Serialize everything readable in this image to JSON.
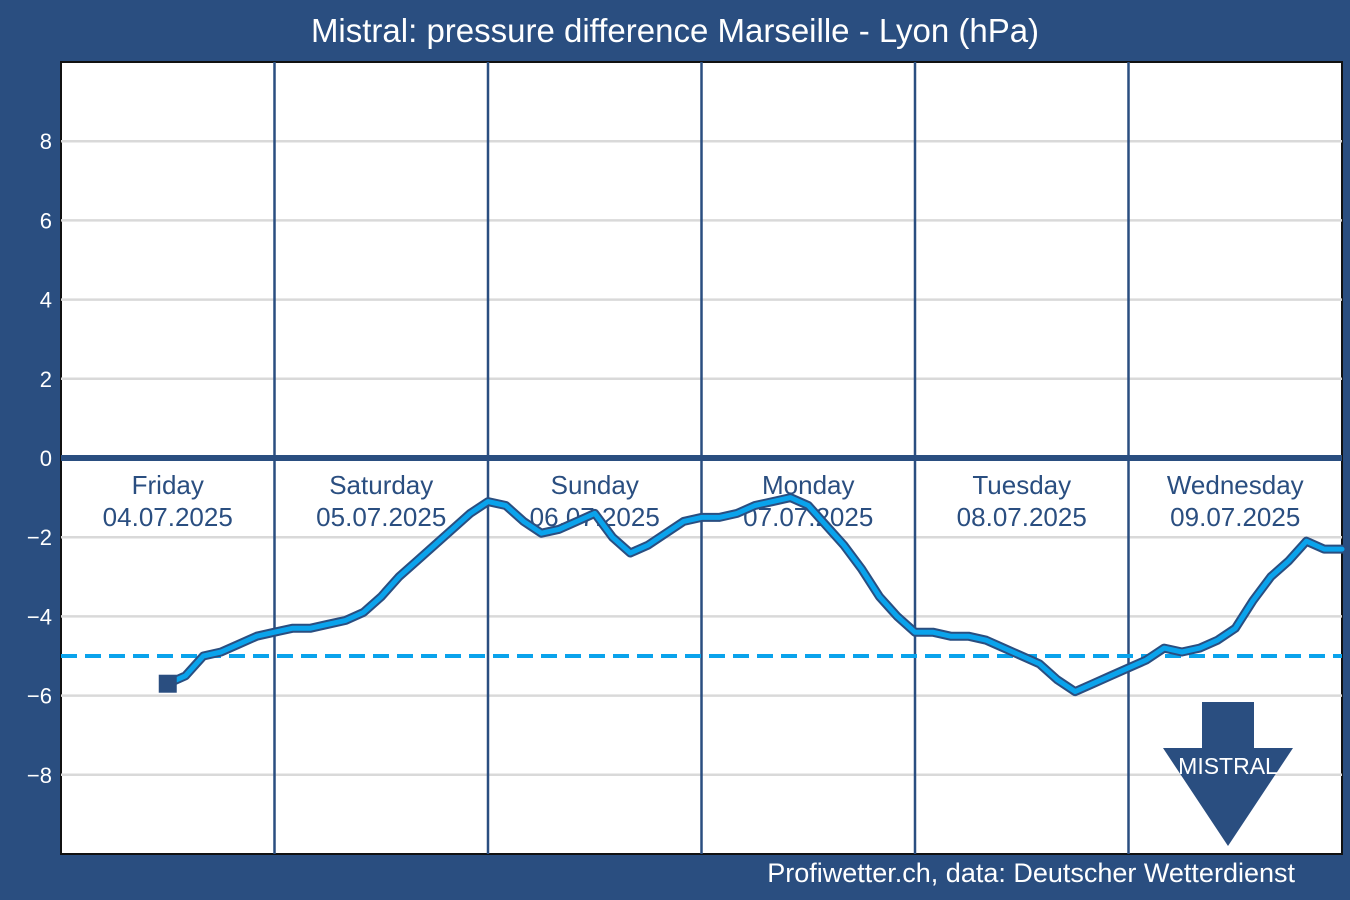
{
  "title": "Mistral: pressure difference Marseille - Lyon (hPa)",
  "source": "Profiwetter.ch, data: Deutscher Wetterdienst",
  "colors": {
    "background": "#2a4e80",
    "plot_bg": "#ffffff",
    "grid": "#d9d9d9",
    "series": "#0aa3ec",
    "series_outline": "#2a4e80",
    "threshold": "#0aa3ec",
    "zero_line": "#2a4e80",
    "day_divider": "#2a4e80"
  },
  "mistral_marker": {
    "label": "MISTRAL",
    "icon": "arrow-down-icon"
  },
  "chart_data": {
    "type": "line",
    "title": "Mistral: pressure difference Marseille - Lyon (hPa)",
    "xlabel": "",
    "ylabel": "",
    "ylim": [
      -10,
      10
    ],
    "xlim_hours": [
      0,
      144
    ],
    "yticks": [
      {
        "value": 8,
        "label": "8"
      },
      {
        "value": 6,
        "label": "6"
      },
      {
        "value": 4,
        "label": "4"
      },
      {
        "value": 2,
        "label": "2"
      },
      {
        "value": 0,
        "label": "0"
      },
      {
        "value": -2,
        "label": "−2"
      },
      {
        "value": -4,
        "label": "−4"
      },
      {
        "value": -6,
        "label": "−6"
      },
      {
        "value": -8,
        "label": "−8"
      }
    ],
    "grid": true,
    "days": [
      {
        "weekday": "Friday",
        "date": "04.07.2025"
      },
      {
        "weekday": "Saturday",
        "date": "05.07.2025"
      },
      {
        "weekday": "Sunday",
        "date": "06.07.2025"
      },
      {
        "weekday": "Monday",
        "date": "07.07.2025"
      },
      {
        "weekday": "Tuesday",
        "date": "08.07.2025"
      },
      {
        "weekday": "Wednesday",
        "date": "09.07.2025"
      }
    ],
    "threshold": -5,
    "start_point": {
      "hour": 12,
      "value": -5.7
    },
    "series": [
      {
        "x": [
          12,
          14,
          16,
          18,
          20,
          22,
          24,
          26,
          28,
          30,
          32,
          34,
          36,
          38,
          40,
          42,
          44,
          46,
          48,
          50,
          52,
          54,
          56,
          58,
          60,
          62,
          64,
          66,
          68,
          70,
          72,
          74,
          76,
          78,
          80,
          82,
          84,
          86,
          88,
          90,
          92,
          94,
          96,
          98,
          100,
          102,
          104,
          106,
          108,
          110,
          112,
          114,
          116,
          118,
          120,
          122,
          124,
          126,
          128,
          130,
          132,
          134,
          136,
          138,
          140,
          142,
          144
        ],
        "y": [
          -5.7,
          -5.5,
          -5.0,
          -4.9,
          -4.7,
          -4.5,
          -4.4,
          -4.3,
          -4.3,
          -4.2,
          -4.1,
          -3.9,
          -3.5,
          -3.0,
          -2.6,
          -2.2,
          -1.8,
          -1.4,
          -1.1,
          -1.2,
          -1.6,
          -1.9,
          -1.8,
          -1.6,
          -1.4,
          -2.0,
          -2.4,
          -2.2,
          -1.9,
          -1.6,
          -1.5,
          -1.5,
          -1.4,
          -1.2,
          -1.1,
          -1.0,
          -1.2,
          -1.7,
          -2.2,
          -2.8,
          -3.5,
          -4.0,
          -4.4,
          -4.4,
          -4.5,
          -4.5,
          -4.6,
          -4.8,
          -5.0,
          -5.2,
          -5.6,
          -5.9,
          -5.7,
          -5.5,
          -5.3,
          -5.1,
          -4.8,
          -4.9,
          -4.8,
          -4.6,
          -4.3,
          -3.6,
          -3.0,
          -2.6,
          -2.1,
          -2.3,
          -2.3
        ]
      }
    ]
  }
}
